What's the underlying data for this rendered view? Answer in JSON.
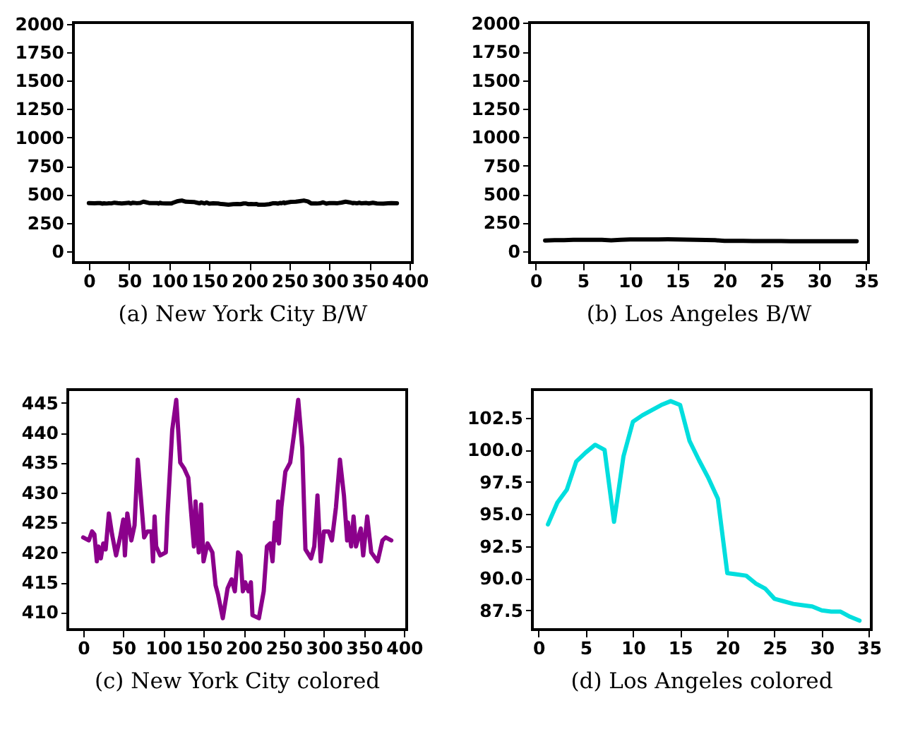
{
  "chart_data": [
    {
      "type": "line",
      "annotations": [
        "(a) New York City B/W"
      ],
      "xlim": [
        -19.2,
        403.2
      ],
      "ylim": [
        -100,
        2010
      ],
      "xticks": [
        0,
        50,
        100,
        150,
        200,
        250,
        300,
        350,
        400
      ],
      "yticks": [
        0,
        250,
        500,
        750,
        1000,
        1250,
        1500,
        1750,
        2000
      ],
      "x": [
        0,
        7,
        11,
        14,
        17,
        19,
        22,
        25,
        28,
        32,
        36,
        41,
        46,
        50,
        52,
        55,
        60,
        64,
        68,
        72,
        76,
        80,
        85,
        87,
        89,
        91,
        96,
        103,
        105,
        111,
        116,
        121,
        126,
        131,
        134,
        138,
        140,
        144,
        147,
        150,
        155,
        161,
        165,
        168,
        174,
        180,
        185,
        189,
        193,
        196,
        199,
        202,
        206,
        209,
        211,
        219,
        225,
        229,
        233,
        236,
        239,
        240,
        243,
        244,
        247,
        252,
        258,
        263,
        268,
        273,
        277,
        284,
        288,
        292,
        296,
        300,
        306,
        310,
        315,
        320,
        325,
        329,
        330,
        334,
        337,
        340,
        346,
        349,
        354,
        359,
        367,
        373,
        377,
        384
      ],
      "series": [
        {
          "color": "#000000",
          "values": [
            422.5,
            422,
            423.5,
            423,
            418.5,
            421,
            419,
            421.5,
            420.5,
            426.5,
            423,
            419.5,
            422.5,
            425.5,
            419.5,
            426.5,
            422,
            424.5,
            435.5,
            429,
            422.5,
            423.5,
            423.5,
            418.5,
            426,
            421,
            419.5,
            420,
            426,
            440.5,
            445.5,
            435,
            434,
            432.5,
            427.5,
            421,
            428.5,
            420,
            428,
            418.5,
            421.5,
            420,
            414.5,
            413,
            409,
            414,
            415.5,
            413.5,
            420,
            419.5,
            413.5,
            415,
            413.5,
            415,
            409.5,
            409,
            413.5,
            421,
            421.5,
            418.5,
            425,
            422,
            428.5,
            421.5,
            427.5,
            433.5,
            435,
            440,
            445.5,
            437.5,
            420.5,
            419,
            421,
            429.5,
            418.5,
            423.5,
            423.5,
            422,
            427.5,
            435.5,
            429.5,
            422,
            425,
            421,
            426,
            421,
            424,
            419.5,
            426,
            420,
            418.5,
            422,
            422.5,
            422
          ]
        }
      ]
    },
    {
      "type": "line",
      "annotations": [
        "(b) Los Angeles B/W"
      ],
      "xlim": [
        -0.65,
        35.25
      ],
      "ylim": [
        -100,
        2005
      ],
      "xticks": [
        0,
        5,
        10,
        15,
        20,
        25,
        30,
        35
      ],
      "yticks": [
        0,
        250,
        500,
        750,
        1000,
        1250,
        1500,
        1750,
        2000
      ],
      "x": [
        1,
        2,
        3,
        4,
        5,
        6,
        7,
        8,
        9,
        10,
        11,
        12,
        13,
        14,
        15,
        16,
        17,
        18,
        19,
        20,
        21,
        22,
        23,
        24,
        25,
        26,
        27,
        28,
        29,
        30,
        31,
        32,
        33,
        34
      ],
      "series": [
        {
          "color": "#000000",
          "values": [
            94.2,
            95.9,
            96.9,
            99.1,
            99.8,
            100.4,
            100.0,
            94.4,
            99.5,
            102.2,
            102.7,
            103.1,
            103.5,
            103.8,
            103.5,
            100.7,
            99.2,
            97.8,
            96.2,
            90.4,
            90.3,
            90.2,
            89.6,
            89.2,
            88.4,
            88.2,
            88.0,
            87.9,
            87.8,
            87.5,
            87.4,
            87.4,
            87.0,
            86.7
          ]
        }
      ]
    },
    {
      "type": "line",
      "annotations": [
        "(c) New York City colored"
      ],
      "xlim": [
        -19.2,
        403.2
      ],
      "ylim": [
        407.1,
        447.2
      ],
      "xticks": [
        0,
        50,
        100,
        150,
        200,
        250,
        300,
        350,
        400
      ],
      "yticks": [
        410,
        415,
        420,
        425,
        430,
        435,
        440,
        445
      ],
      "x": [
        0,
        7,
        11,
        14,
        17,
        19,
        22,
        25,
        28,
        32,
        36,
        41,
        46,
        50,
        52,
        55,
        60,
        64,
        68,
        72,
        76,
        80,
        85,
        87,
        89,
        91,
        96,
        103,
        105,
        111,
        116,
        121,
        126,
        131,
        134,
        138,
        140,
        144,
        147,
        150,
        155,
        161,
        165,
        168,
        174,
        180,
        185,
        189,
        193,
        196,
        199,
        202,
        206,
        209,
        211,
        219,
        225,
        229,
        233,
        236,
        239,
        240,
        243,
        244,
        247,
        252,
        258,
        263,
        268,
        273,
        277,
        284,
        288,
        292,
        296,
        300,
        306,
        310,
        315,
        320,
        325,
        329,
        330,
        334,
        337,
        340,
        346,
        349,
        354,
        359,
        367,
        373,
        377,
        384
      ],
      "series": [
        {
          "color": "#8b008b",
          "values": [
            422.5,
            422,
            423.5,
            423,
            418.5,
            421,
            419,
            421.5,
            420.5,
            426.5,
            423,
            419.5,
            422.5,
            425.5,
            419.5,
            426.5,
            422,
            424.5,
            435.5,
            429,
            422.5,
            423.5,
            423.5,
            418.5,
            426,
            421,
            419.5,
            420,
            426,
            440.5,
            445.5,
            435,
            434,
            432.5,
            427.5,
            421,
            428.5,
            420,
            428,
            418.5,
            421.5,
            420,
            414.5,
            413,
            409,
            414,
            415.5,
            413.5,
            420,
            419.5,
            413.5,
            415,
            413.5,
            415,
            409.5,
            409,
            413.5,
            421,
            421.5,
            418.5,
            425,
            422,
            428.5,
            421.5,
            427.5,
            433.5,
            435,
            440,
            445.5,
            437.5,
            420.5,
            419,
            421,
            429.5,
            418.5,
            423.5,
            423.5,
            422,
            427.5,
            435.5,
            429.5,
            422,
            425,
            421,
            426,
            421,
            424,
            419.5,
            426,
            420,
            418.5,
            422,
            422.5,
            422
          ]
        }
      ]
    },
    {
      "type": "line",
      "annotations": [
        "(d) Los Angeles colored"
      ],
      "xlim": [
        -0.65,
        35.25
      ],
      "ylim": [
        86.0,
        104.7
      ],
      "xticks": [
        0,
        5,
        10,
        15,
        20,
        25,
        30,
        35
      ],
      "yticks": [
        87.5,
        {
          "value": 90,
          "label": "90.0"
        },
        92.5,
        {
          "value": 95,
          "label": "95.0"
        },
        97.5,
        {
          "value": 100,
          "label": "100.0"
        },
        102.5
      ],
      "x": [
        1,
        2,
        3,
        4,
        5,
        6,
        7,
        8,
        9,
        10,
        11,
        12,
        13,
        14,
        15,
        16,
        17,
        18,
        19,
        20,
        21,
        22,
        23,
        24,
        25,
        26,
        27,
        28,
        29,
        30,
        31,
        32,
        33,
        34
      ],
      "series": [
        {
          "color": "#00dede",
          "values": [
            94.2,
            95.9,
            96.9,
            99.1,
            99.8,
            100.4,
            100.0,
            94.4,
            99.5,
            102.2,
            102.7,
            103.1,
            103.5,
            103.8,
            103.5,
            100.7,
            99.2,
            97.8,
            96.2,
            90.4,
            90.3,
            90.2,
            89.6,
            89.2,
            88.4,
            88.2,
            88.0,
            87.9,
            87.8,
            87.5,
            87.4,
            87.4,
            87.0,
            86.7
          ]
        }
      ]
    }
  ]
}
